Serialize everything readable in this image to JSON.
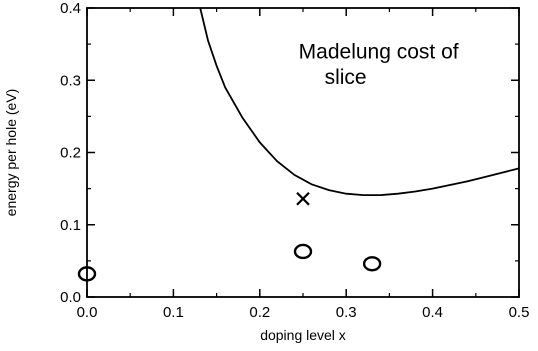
{
  "chart_data": {
    "type": "scatter",
    "title": "",
    "xlabel": "doping level x",
    "ylabel": "energy per hole (eV)",
    "xlim": [
      0.0,
      0.5
    ],
    "ylim": [
      0.0,
      0.4
    ],
    "x_ticks": [
      "0.0",
      "0.1",
      "0.2",
      "0.3",
      "0.4",
      "0.5"
    ],
    "y_ticks": [
      "0.0",
      "0.1",
      "0.2",
      "0.3",
      "0.4"
    ],
    "grid": false,
    "annotation": {
      "line1": "Madelung cost of",
      "line2": "slice"
    },
    "curve": {
      "x": [
        0.131,
        0.14,
        0.15,
        0.16,
        0.18,
        0.2,
        0.22,
        0.24,
        0.26,
        0.28,
        0.3,
        0.32,
        0.34,
        0.36,
        0.38,
        0.4,
        0.42,
        0.44,
        0.46,
        0.48,
        0.5
      ],
      "y": [
        0.4,
        0.355,
        0.32,
        0.29,
        0.248,
        0.214,
        0.188,
        0.169,
        0.156,
        0.148,
        0.143,
        0.141,
        0.141,
        0.143,
        0.146,
        0.15,
        0.155,
        0.16,
        0.166,
        0.172,
        0.178
      ]
    },
    "circles": {
      "x": [
        0.0,
        0.25,
        0.33
      ],
      "y": [
        0.032,
        0.063,
        0.046
      ]
    },
    "crosses": {
      "x": [
        0.25
      ],
      "y": [
        0.136
      ]
    }
  }
}
